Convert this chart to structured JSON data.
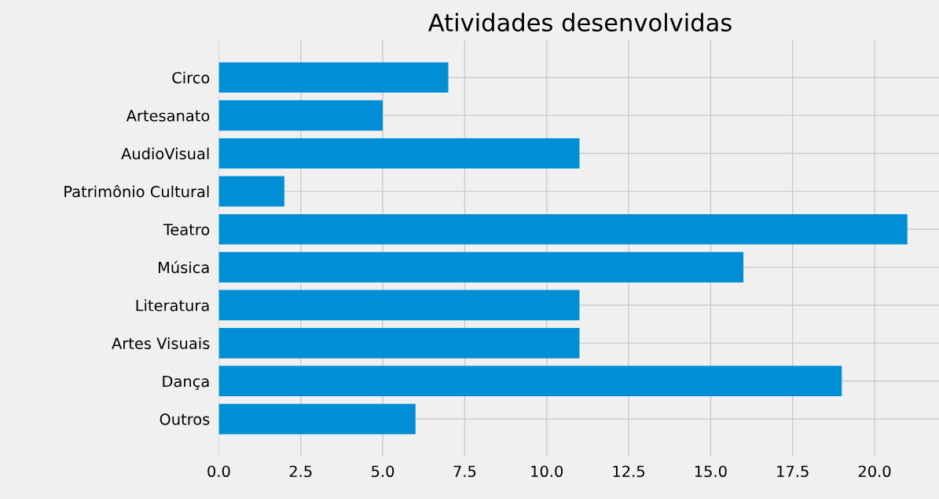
{
  "chart_data": {
    "type": "bar",
    "orientation": "horizontal",
    "title": "Atividades desenvolvidas",
    "categories": [
      "Circo",
      "Artesanato",
      "AudioVisual",
      "Patrimônio Cultural",
      "Teatro",
      "Música",
      "Literatura",
      "Artes Visuais",
      "Dança",
      "Outros"
    ],
    "values": [
      7,
      5,
      11,
      2,
      21,
      16,
      11,
      11,
      19,
      6
    ],
    "color": "#008fd5",
    "xlim": [
      0,
      22.05
    ],
    "xticks": [
      {
        "value": 0,
        "label": "0.0"
      },
      {
        "value": 2.5,
        "label": "2.5"
      },
      {
        "value": 5,
        "label": "5.0"
      },
      {
        "value": 7.5,
        "label": "7.5"
      },
      {
        "value": 10,
        "label": "10.0"
      },
      {
        "value": 12.5,
        "label": "12.5"
      },
      {
        "value": 15,
        "label": "15.0"
      },
      {
        "value": 17.5,
        "label": "17.5"
      },
      {
        "value": 20,
        "label": "20.0"
      }
    ],
    "grid": true
  }
}
